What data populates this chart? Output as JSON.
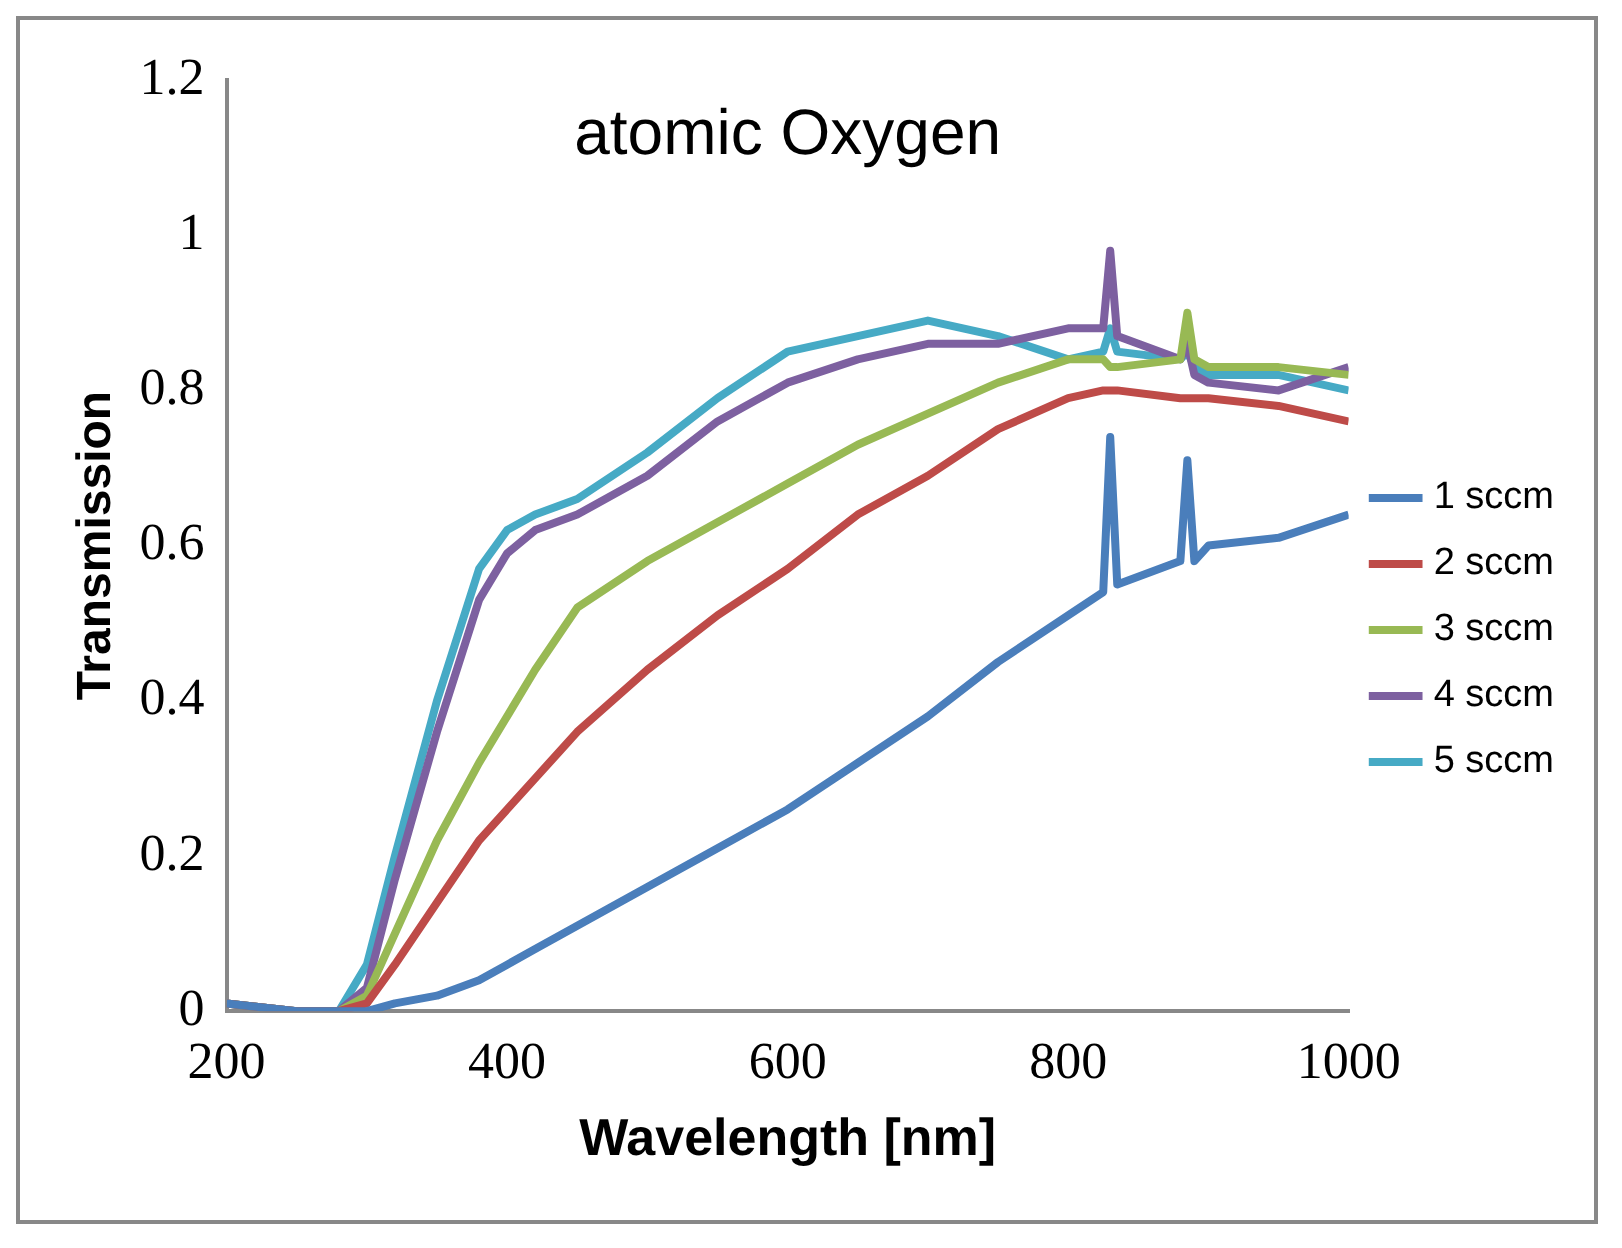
{
  "chart_data": {
    "type": "line",
    "title": "atomic Oxygen",
    "xlabel": "Wavelength [nm]",
    "ylabel": "Transmission",
    "x": [
      200,
      250,
      280,
      300,
      320,
      350,
      380,
      400,
      420,
      450,
      500,
      550,
      600,
      650,
      700,
      750,
      800,
      825,
      830,
      835,
      880,
      885,
      890,
      900,
      950,
      1000
    ],
    "series": [
      {
        "name": "1 sccm",
        "color": "#4a7ebb",
        "values": [
          0.01,
          0.0,
          0.0,
          0.0,
          0.01,
          0.02,
          0.04,
          0.06,
          0.08,
          0.11,
          0.16,
          0.21,
          0.26,
          0.32,
          0.38,
          0.45,
          0.51,
          0.54,
          0.74,
          0.55,
          0.58,
          0.71,
          0.58,
          0.6,
          0.61,
          0.64
        ]
      },
      {
        "name": "2 sccm",
        "color": "#be4b48",
        "values": [
          0.01,
          0.0,
          0.0,
          0.01,
          0.06,
          0.14,
          0.22,
          0.26,
          0.3,
          0.36,
          0.44,
          0.51,
          0.57,
          0.64,
          0.69,
          0.75,
          0.79,
          0.8,
          0.8,
          0.8,
          0.79,
          0.79,
          0.79,
          0.79,
          0.78,
          0.76
        ]
      },
      {
        "name": "3 sccm",
        "color": "#98b954",
        "values": [
          0.01,
          0.0,
          0.0,
          0.02,
          0.1,
          0.22,
          0.32,
          0.38,
          0.44,
          0.52,
          0.58,
          0.63,
          0.68,
          0.73,
          0.77,
          0.81,
          0.84,
          0.84,
          0.83,
          0.83,
          0.84,
          0.9,
          0.84,
          0.83,
          0.83,
          0.82
        ]
      },
      {
        "name": "4 sccm",
        "color": "#7d60a0",
        "values": [
          0.01,
          0.0,
          0.0,
          0.03,
          0.17,
          0.36,
          0.53,
          0.59,
          0.62,
          0.64,
          0.69,
          0.76,
          0.81,
          0.84,
          0.86,
          0.86,
          0.88,
          0.88,
          0.98,
          0.87,
          0.84,
          0.86,
          0.82,
          0.81,
          0.8,
          0.83
        ]
      },
      {
        "name": "5 sccm",
        "color": "#46aac5",
        "values": [
          0.01,
          0.0,
          0.0,
          0.06,
          0.2,
          0.4,
          0.57,
          0.62,
          0.64,
          0.66,
          0.72,
          0.79,
          0.85,
          0.87,
          0.89,
          0.87,
          0.84,
          0.85,
          0.88,
          0.85,
          0.84,
          0.85,
          0.83,
          0.82,
          0.82,
          0.8
        ]
      }
    ],
    "xlim": [
      200,
      1000
    ],
    "xticks": [
      200,
      400,
      600,
      800,
      1000
    ],
    "ylim": [
      0,
      1.2
    ],
    "yticks": [
      0,
      0.2,
      0.4,
      0.6,
      0.8,
      1,
      1.2
    ],
    "grid": false,
    "legend": "right",
    "marker": "none",
    "line_style": "solid"
  }
}
